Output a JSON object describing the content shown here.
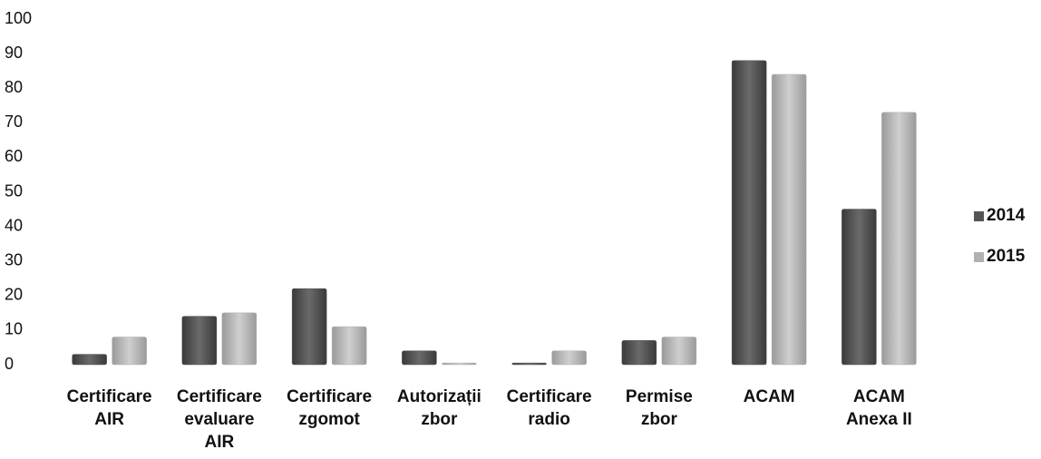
{
  "chart_data": {
    "type": "bar",
    "categories": [
      [
        "Certificare",
        "AIR"
      ],
      [
        "Certificare",
        "evaluare",
        "AIR"
      ],
      [
        "Certificare",
        "zgomot"
      ],
      [
        "Autorizații",
        "zbor"
      ],
      [
        "Certificare",
        "radio"
      ],
      [
        "Permise",
        "zbor"
      ],
      [
        "ACAM"
      ],
      [
        "ACAM",
        "Anexa II"
      ]
    ],
    "series": [
      {
        "name": "2014",
        "color": "#555555",
        "values": [
          3,
          14,
          22,
          4,
          0.5,
          7,
          88,
          45
        ]
      },
      {
        "name": "2015",
        "color": "#b0b0b0",
        "values": [
          8,
          15,
          11,
          0.5,
          4,
          8,
          84,
          73
        ]
      }
    ],
    "ylim": [
      0,
      100
    ],
    "yticks": [
      0,
      10,
      20,
      30,
      40,
      50,
      60,
      70,
      80,
      90,
      100
    ],
    "legend": "right"
  }
}
